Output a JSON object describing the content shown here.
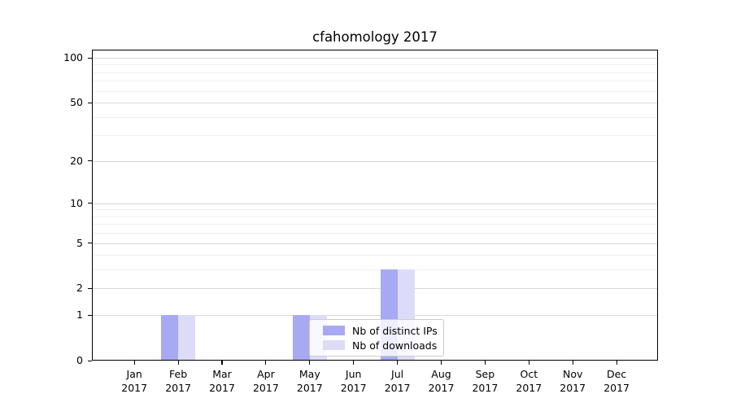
{
  "chart_data": {
    "type": "bar",
    "title": "cfahomology 2017",
    "categories": [
      {
        "month": "Jan",
        "year": "2017"
      },
      {
        "month": "Feb",
        "year": "2017"
      },
      {
        "month": "Mar",
        "year": "2017"
      },
      {
        "month": "Apr",
        "year": "2017"
      },
      {
        "month": "May",
        "year": "2017"
      },
      {
        "month": "Jun",
        "year": "2017"
      },
      {
        "month": "Jul",
        "year": "2017"
      },
      {
        "month": "Aug",
        "year": "2017"
      },
      {
        "month": "Sep",
        "year": "2017"
      },
      {
        "month": "Oct",
        "year": "2017"
      },
      {
        "month": "Nov",
        "year": "2017"
      },
      {
        "month": "Dec",
        "year": "2017"
      }
    ],
    "series": [
      {
        "name": "Nb of distinct IPs",
        "color": "#a8a9f3",
        "values": [
          0,
          1,
          0,
          0,
          1,
          0,
          3,
          0,
          0,
          0,
          0,
          0
        ]
      },
      {
        "name": "Nb of downloads",
        "color": "#dcdcf8",
        "values": [
          0,
          1,
          0,
          0,
          1,
          0,
          3,
          0,
          0,
          0,
          0,
          0
        ]
      }
    ],
    "xlabel": "",
    "ylabel": "",
    "yscale": "log1p",
    "ylim": [
      0,
      113
    ],
    "yticks": [
      0,
      1,
      2,
      5,
      10,
      20,
      50,
      100
    ],
    "minor_yticks": [
      3,
      4,
      6,
      7,
      8,
      9,
      30,
      40,
      60,
      70,
      80,
      90
    ],
    "grid": true,
    "legend_position": "lower center",
    "colors": {
      "major_grid": "#d8d8d8",
      "minor_grid": "#efefef",
      "spine": "#000000",
      "background": "#ffffff",
      "text": "#000000"
    }
  }
}
